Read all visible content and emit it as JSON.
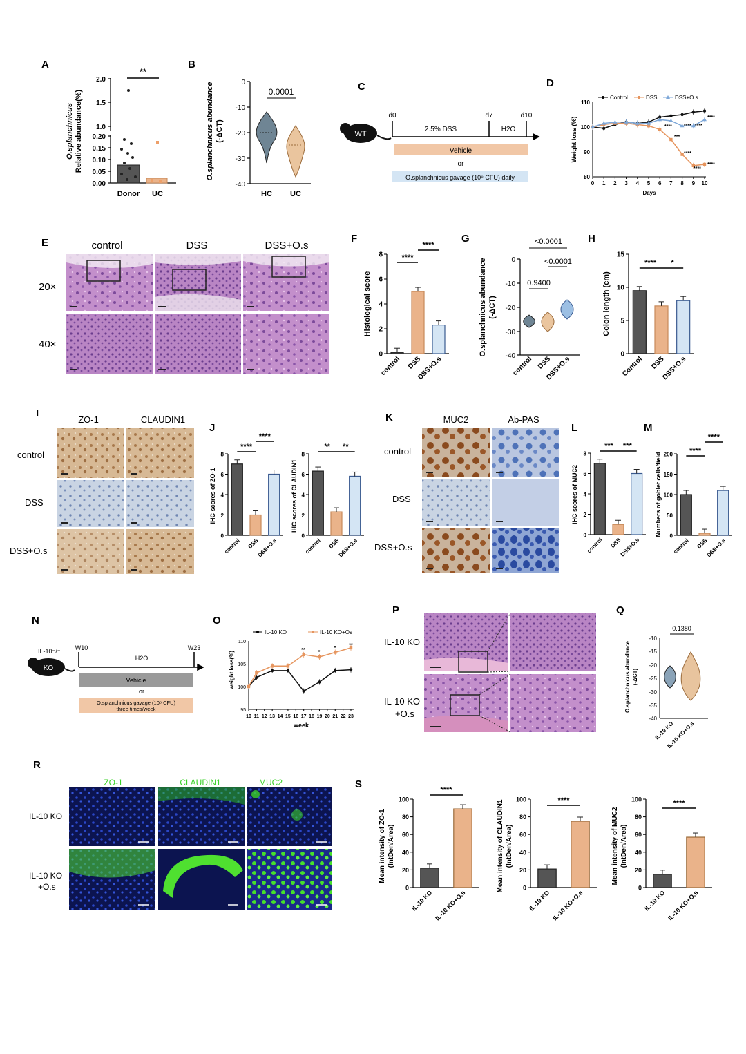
{
  "panels": {
    "A": {
      "letter": "A",
      "ylabel1": "O.splanchnicus",
      "ylabel2": "Relative abundance(%)",
      "categories": [
        "Donor",
        "UC"
      ],
      "sig": "**",
      "ticks_top": [
        "2.0",
        "1.5",
        "1.0"
      ],
      "ticks_bottom": [
        "0.20",
        "0.15",
        "0.10",
        "0.05",
        "0.00"
      ]
    },
    "B": {
      "letter": "B",
      "ylabel1": "O.splanchnicus abundance",
      "ylabel2": "(-ΔCT)",
      "categories": [
        "HC",
        "UC"
      ],
      "pval": "0.0001",
      "ticks": [
        "0",
        "-10",
        "-20",
        "-30",
        "-40"
      ]
    },
    "C": {
      "letter": "C",
      "mouse": "WT",
      "d0": "d0",
      "d7": "d7",
      "d10": "d10",
      "dss": "2.5% DSS",
      "h2o": "H2O",
      "vehicle": "Vehicle",
      "or": "or",
      "gavage": "O.splanchnicus gavage (10⁸ CFU) daily"
    },
    "D": {
      "letter": "D",
      "ylabel": "Weight loss (%)",
      "xlabel": "Days",
      "legend": [
        "Control",
        "DSS",
        "DSS+O.s"
      ],
      "ticks_y": [
        "110",
        "100",
        "90",
        "80"
      ],
      "ticks_x": [
        "0",
        "1",
        "2",
        "3",
        "4",
        "5",
        "6",
        "7",
        "8",
        "9",
        "10"
      ],
      "stars": [
        "****",
        "****",
        "****",
        "****",
        "***",
        "****",
        "****",
        "****"
      ]
    },
    "E": {
      "letter": "E",
      "cols": [
        "control",
        "DSS",
        "DSS+O.s"
      ],
      "rows": [
        "20×",
        "40×"
      ]
    },
    "F": {
      "letter": "F",
      "ylabel": "Histological score",
      "categories": [
        "control",
        "DSS",
        "DSS+O.s"
      ],
      "sig1": "****",
      "sig2": "****",
      "ticks": [
        "8",
        "6",
        "4",
        "2",
        "0"
      ]
    },
    "G": {
      "letter": "G",
      "ylabel1": "O.splanchnicus abundance",
      "ylabel2": "(-ΔCT)",
      "categories": [
        "control",
        "DSS",
        "DSS+O.s"
      ],
      "p1": "<0.0001",
      "p2": "<0.0001",
      "p3": "0.9400",
      "ticks": [
        "0",
        "-10",
        "-20",
        "-30",
        "-40"
      ]
    },
    "H": {
      "letter": "H",
      "ylabel": "Colon length (cm)",
      "categories": [
        "Control",
        "DSS",
        "DSS+O.s"
      ],
      "sig1": "****",
      "sig2": "*",
      "ticks": [
        "15",
        "10",
        "5",
        "0"
      ]
    },
    "I": {
      "letter": "I",
      "cols": [
        "ZO-1",
        "CLAUDIN1"
      ],
      "rows": [
        "control",
        "DSS",
        "DSS+O.s"
      ]
    },
    "J": {
      "letter": "J",
      "ylabel1": "IHC scores of ZO-1",
      "ylabel2": "IHC scores of CLAUDIN1",
      "categories": [
        "control",
        "DSS",
        "DSS+O.s"
      ],
      "sig1a": "****",
      "sig1b": "****",
      "sig2a": "**",
      "sig2b": "**",
      "ticks": [
        "8",
        "6",
        "4",
        "2",
        "0"
      ]
    },
    "K": {
      "letter": "K",
      "cols": [
        "MUC2",
        "Ab-PAS"
      ],
      "rows": [
        "control",
        "DSS",
        "DSS+O.s"
      ]
    },
    "L": {
      "letter": "L",
      "ylabel": "IHC scores of MUC2",
      "categories": [
        "control",
        "DSS",
        "DSS+O.s"
      ],
      "sig1": "***",
      "sig2": "***",
      "ticks": [
        "8",
        "6",
        "4",
        "2",
        "0"
      ]
    },
    "M": {
      "letter": "M",
      "ylabel": "Numbers of goblet cells/field",
      "categories": [
        "control",
        "DSS",
        "DSS+O.s"
      ],
      "sig1": "****",
      "sig2": "****",
      "ticks": [
        "200",
        "150",
        "100",
        "50",
        "0"
      ]
    },
    "N": {
      "letter": "N",
      "mouse": "KO",
      "genotype": "IL-10⁻/⁻",
      "w10": "W10",
      "w23": "W23",
      "h2o": "H2O",
      "vehicle": "Vehicle",
      "or": "or",
      "gavage1": "O.splanchnicus gavage (10⁸ CFU)",
      "gavage2": "three times/week"
    },
    "O": {
      "letter": "O",
      "ylabel": "weight loss(%)",
      "xlabel": "week",
      "legend": [
        "IL-10 KO",
        "IL-10 KO+Os"
      ],
      "ticks_y": [
        "110",
        "105",
        "100",
        "95"
      ],
      "ticks_x": [
        "10",
        "11",
        "12",
        "13",
        "14",
        "15",
        "16",
        "17",
        "18",
        "19",
        "20",
        "21",
        "22",
        "23"
      ],
      "stars": [
        "**",
        "*",
        "*",
        "**"
      ]
    },
    "P": {
      "letter": "P",
      "rows": [
        "IL-10 KO",
        "IL-10 KO",
        "+O.s"
      ]
    },
    "Q": {
      "letter": "Q",
      "ylabel1": "O.splanchnicus abundance",
      "ylabel2": "(-ΔCT)",
      "categories": [
        "IL-10 KO",
        "IL-10 KO+O.s"
      ],
      "pval": "0.1380",
      "ticks": [
        "-10",
        "-15",
        "-20",
        "-25",
        "-30",
        "-35",
        "-40"
      ]
    },
    "R": {
      "letter": "R",
      "cols": [
        "ZO-1",
        "CLAUDIN1",
        "MUC2"
      ],
      "rows": [
        "IL-10 KO",
        "IL-10 KO",
        "+O.s"
      ]
    },
    "S": {
      "letter": "S",
      "ylabels": [
        "Mean intensity of ZO-1",
        "Mean intensity of CLAUDIN1",
        "Mean intensity of MUC2"
      ],
      "ylabel2": "(IntDen/Area)",
      "categories": [
        "IL-10 KO",
        "IL-10 KO+O.s"
      ],
      "sig": "****",
      "ticks": [
        "100",
        "80",
        "60",
        "40",
        "20",
        "0"
      ]
    }
  },
  "colors": {
    "dark": "#555555",
    "orange": "#eab38a",
    "orange_line": "#e6955e",
    "blue": "#cfe0f2",
    "blue_line": "#5a87c4",
    "steel": "#8aa3b8",
    "tan": "#e8c49e",
    "pink_tissue": "#c792c9",
    "brown_ihc": "#c49a6c",
    "blue_ihc": "#b9c8dc",
    "fluor_blue": "#2030a0",
    "fluor_green": "#39d21f"
  },
  "chart_data": [
    {
      "type": "bar",
      "panel": "A",
      "categories": [
        "Donor",
        "UC"
      ],
      "values": [
        0.075,
        0.02
      ],
      "ylabel": "Relative abundance(%)"
    },
    {
      "type": "violin",
      "panel": "B",
      "categories": [
        "HC",
        "UC"
      ],
      "values": [
        -20,
        -25
      ],
      "ylim": [
        -40,
        0
      ]
    },
    {
      "type": "line",
      "panel": "D",
      "x": [
        0,
        1,
        2,
        3,
        4,
        5,
        6,
        7,
        8,
        9,
        10
      ],
      "series": [
        {
          "name": "Control",
          "values": [
            100,
            99.5,
            101,
            102,
            101.5,
            102,
            104,
            104.5,
            105,
            106,
            106.5
          ]
        },
        {
          "name": "DSS",
          "values": [
            100,
            101,
            101.5,
            101.5,
            101,
            100.5,
            99,
            95,
            89,
            84.5,
            85
          ]
        },
        {
          "name": "DSS+O.s",
          "values": [
            100,
            101.5,
            102,
            102,
            101.5,
            101.5,
            103,
            102.5,
            100.5,
            100.5,
            103
          ]
        }
      ],
      "ylim": [
        80,
        110
      ]
    },
    {
      "type": "bar",
      "panel": "F",
      "categories": [
        "control",
        "DSS",
        "DSS+O.s"
      ],
      "values": [
        0.1,
        5.0,
        2.3
      ],
      "ylim": [
        0,
        8
      ]
    },
    {
      "type": "violin",
      "panel": "G",
      "categories": [
        "control",
        "DSS",
        "DSS+O.s"
      ],
      "values": [
        -26,
        -26,
        -21
      ],
      "ylim": [
        -40,
        0
      ]
    },
    {
      "type": "bar",
      "panel": "H",
      "categories": [
        "Control",
        "DSS",
        "DSS+O.s"
      ],
      "values": [
        9.5,
        7.2,
        8.0
      ],
      "ylim": [
        0,
        15
      ]
    },
    {
      "type": "bar",
      "panel": "J-ZO-1",
      "categories": [
        "control",
        "DSS",
        "DSS+O.s"
      ],
      "values": [
        7.0,
        2.0,
        6.0
      ],
      "ylim": [
        0,
        8
      ]
    },
    {
      "type": "bar",
      "panel": "J-CLAUDIN1",
      "categories": [
        "control",
        "DSS",
        "DSS+O.s"
      ],
      "values": [
        6.3,
        2.3,
        5.8
      ],
      "ylim": [
        0,
        8
      ]
    },
    {
      "type": "bar",
      "panel": "L",
      "categories": [
        "control",
        "DSS",
        "DSS+O.s"
      ],
      "values": [
        7.0,
        1.0,
        6.0
      ],
      "ylim": [
        0,
        8
      ]
    },
    {
      "type": "bar",
      "panel": "M",
      "categories": [
        "control",
        "DSS",
        "DSS+O.s"
      ],
      "values": [
        100,
        5,
        110
      ],
      "ylim": [
        0,
        200
      ]
    },
    {
      "type": "line",
      "panel": "O",
      "x": [
        10,
        11,
        13,
        15,
        17,
        19,
        21,
        23
      ],
      "series": [
        {
          "name": "IL-10 KO",
          "values": [
            100,
            102,
            103.5,
            103.5,
            99,
            101,
            103.5,
            103.7
          ]
        },
        {
          "name": "IL-10 KO+Os",
          "values": [
            100,
            103,
            104.5,
            104.5,
            107,
            106.5,
            107.5,
            108.5
          ]
        }
      ],
      "ylim": [
        95,
        110
      ]
    },
    {
      "type": "violin",
      "panel": "Q",
      "categories": [
        "IL-10 KO",
        "IL-10 KO+O.s"
      ],
      "values": [
        -22,
        -21
      ],
      "ylim": [
        -40,
        -10
      ]
    },
    {
      "type": "bar",
      "panel": "S-ZO-1",
      "categories": [
        "IL-10 KO",
        "IL-10 KO+O.s"
      ],
      "values": [
        22,
        89
      ],
      "ylim": [
        0,
        100
      ]
    },
    {
      "type": "bar",
      "panel": "S-CLAUDIN1",
      "categories": [
        "IL-10 KO",
        "IL-10 KO+O.s"
      ],
      "values": [
        21,
        75
      ],
      "ylim": [
        0,
        100
      ]
    },
    {
      "type": "bar",
      "panel": "S-MUC2",
      "categories": [
        "IL-10 KO",
        "IL-10 KO+O.s"
      ],
      "values": [
        15,
        57
      ],
      "ylim": [
        0,
        100
      ]
    }
  ]
}
